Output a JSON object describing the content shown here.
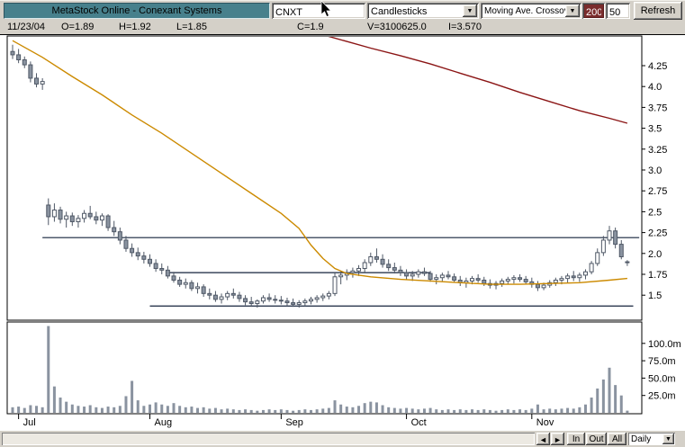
{
  "window": {
    "title": "MetaStock Online - Conexant Systems",
    "ticker": "CNXT",
    "chart_type": "Candlesticks",
    "indicator": "Moving Ave. Crossover",
    "param1": "200",
    "param2": "50",
    "refresh_label": "Refresh"
  },
  "info_bar": {
    "date": "11/23/04",
    "open": "O=1.89",
    "high": "H=1.92",
    "low": "L=1.85",
    "close": "C=1.9",
    "volume": "V=3100625.0",
    "indicator_value": "I=3.570"
  },
  "bottom_bar": {
    "zoom_in": "In",
    "zoom_out": "Out",
    "zoom_all": "All",
    "periodicity": "Daily"
  },
  "icons": {
    "down_arrow": "▼",
    "left_arrow": "◄",
    "right_arrow": "►"
  },
  "colors": {
    "ma_fast": "#cc8a00",
    "ma_slow": "#8b1515",
    "candle_stroke": "#4f5866",
    "candle_down_fill": "#8a93a0",
    "candle_up_fill": "#ffffff",
    "volume_bar": "#8a93a0",
    "trendline": "#14233c",
    "title_bg": "#47808c",
    "param_highlight_bg": "#7a2c2c"
  },
  "chart_data": {
    "type": "candlestick+volume",
    "symbol": "CNXT",
    "title": "Conexant Systems - Daily",
    "legend": "Moving Ave. Crossover (200, 50)",
    "price_axis": {
      "tick_values": [
        4.25,
        4.0,
        3.75,
        3.5,
        3.25,
        3.0,
        2.75,
        2.5,
        2.25,
        2.0,
        1.75,
        1.5
      ],
      "tick_labels": [
        "4.25",
        "4.0",
        "3.75",
        "3.5",
        "3.25",
        "3.0",
        "2.75",
        "2.5",
        "2.25",
        "2.0",
        "1.75",
        "1.5"
      ],
      "range_top": 4.6,
      "range_bottom": 1.25
    },
    "volume_axis": {
      "unit": "millions of shares",
      "tick_values": [
        100,
        75,
        50,
        25
      ],
      "tick_labels": [
        "100.0m",
        "75.0m",
        "50.0m",
        "25.0m"
      ]
    },
    "months": [
      {
        "label": "Jul",
        "day": 1
      },
      {
        "label": "Aug",
        "day": 23
      },
      {
        "label": "Sep",
        "day": 45
      },
      {
        "label": "Oct",
        "day": 66
      },
      {
        "label": "Nov",
        "day": 87
      }
    ],
    "candles_format": [
      "open",
      "high",
      "low",
      "close",
      "volume_millions"
    ],
    "candles": [
      [
        4.42,
        4.5,
        4.33,
        4.38,
        8
      ],
      [
        4.38,
        4.45,
        4.28,
        4.32,
        9
      ],
      [
        4.32,
        4.36,
        4.22,
        4.26,
        7
      ],
      [
        4.26,
        4.3,
        4.05,
        4.1,
        11
      ],
      [
        4.1,
        4.16,
        3.99,
        4.03,
        10
      ],
      [
        4.03,
        4.1,
        3.96,
        4.06,
        8
      ],
      [
        2.58,
        2.66,
        2.34,
        2.44,
        125
      ],
      [
        2.44,
        2.6,
        2.38,
        2.52,
        38
      ],
      [
        2.52,
        2.56,
        2.36,
        2.41,
        22
      ],
      [
        2.41,
        2.5,
        2.31,
        2.45,
        16
      ],
      [
        2.45,
        2.49,
        2.33,
        2.38,
        12
      ],
      [
        2.38,
        2.46,
        2.31,
        2.42,
        10
      ],
      [
        2.42,
        2.52,
        2.37,
        2.48,
        9
      ],
      [
        2.48,
        2.57,
        2.41,
        2.44,
        11
      ],
      [
        2.44,
        2.5,
        2.35,
        2.4,
        8
      ],
      [
        2.4,
        2.48,
        2.33,
        2.45,
        7
      ],
      [
        2.45,
        2.47,
        2.27,
        2.31,
        9
      ],
      [
        2.31,
        2.39,
        2.21,
        2.26,
        8
      ],
      [
        2.26,
        2.31,
        2.11,
        2.16,
        10
      ],
      [
        2.16,
        2.21,
        2.02,
        2.06,
        24
      ],
      [
        2.06,
        2.12,
        1.96,
        2.01,
        46
      ],
      [
        2.01,
        2.07,
        1.92,
        1.97,
        18
      ],
      [
        1.97,
        2.02,
        1.88,
        1.93,
        10
      ],
      [
        1.93,
        1.99,
        1.84,
        1.88,
        12
      ],
      [
        1.88,
        1.93,
        1.78,
        1.82,
        15
      ],
      [
        1.82,
        1.88,
        1.75,
        1.8,
        12
      ],
      [
        1.8,
        1.85,
        1.7,
        1.73,
        10
      ],
      [
        1.73,
        1.78,
        1.65,
        1.68,
        14
      ],
      [
        1.68,
        1.72,
        1.6,
        1.63,
        10
      ],
      [
        1.63,
        1.7,
        1.58,
        1.65,
        8
      ],
      [
        1.65,
        1.68,
        1.55,
        1.58,
        9
      ],
      [
        1.58,
        1.65,
        1.52,
        1.6,
        7
      ],
      [
        1.6,
        1.63,
        1.48,
        1.52,
        8
      ],
      [
        1.52,
        1.58,
        1.45,
        1.5,
        6
      ],
      [
        1.5,
        1.55,
        1.42,
        1.45,
        7
      ],
      [
        1.45,
        1.52,
        1.4,
        1.48,
        5
      ],
      [
        1.48,
        1.55,
        1.44,
        1.52,
        6
      ],
      [
        1.52,
        1.58,
        1.46,
        1.5,
        5
      ],
      [
        1.5,
        1.54,
        1.42,
        1.46,
        4
      ],
      [
        1.46,
        1.5,
        1.38,
        1.42,
        5
      ],
      [
        1.42,
        1.48,
        1.36,
        1.4,
        4
      ],
      [
        1.4,
        1.45,
        1.35,
        1.43,
        3
      ],
      [
        1.43,
        1.5,
        1.4,
        1.47,
        4
      ],
      [
        1.47,
        1.52,
        1.42,
        1.45,
        5
      ],
      [
        1.45,
        1.5,
        1.4,
        1.44,
        4
      ],
      [
        1.44,
        1.49,
        1.39,
        1.43,
        5
      ],
      [
        1.43,
        1.47,
        1.37,
        1.41,
        4
      ],
      [
        1.41,
        1.46,
        1.36,
        1.39,
        3
      ],
      [
        1.39,
        1.44,
        1.35,
        1.41,
        4
      ],
      [
        1.41,
        1.46,
        1.37,
        1.43,
        5
      ],
      [
        1.43,
        1.48,
        1.39,
        1.45,
        4
      ],
      [
        1.45,
        1.5,
        1.41,
        1.47,
        5
      ],
      [
        1.47,
        1.52,
        1.43,
        1.49,
        6
      ],
      [
        1.49,
        1.55,
        1.45,
        1.52,
        7
      ],
      [
        1.52,
        1.77,
        1.49,
        1.72,
        18
      ],
      [
        1.72,
        1.79,
        1.63,
        1.74,
        12
      ],
      [
        1.74,
        1.81,
        1.68,
        1.77,
        9
      ],
      [
        1.77,
        1.83,
        1.71,
        1.79,
        8
      ],
      [
        1.79,
        1.86,
        1.73,
        1.82,
        10
      ],
      [
        1.82,
        1.93,
        1.77,
        1.89,
        14
      ],
      [
        1.89,
        2.01,
        1.85,
        1.96,
        16
      ],
      [
        1.96,
        2.06,
        1.89,
        1.93,
        15
      ],
      [
        1.93,
        1.99,
        1.83,
        1.87,
        11
      ],
      [
        1.87,
        1.93,
        1.79,
        1.83,
        8
      ],
      [
        1.83,
        1.89,
        1.76,
        1.8,
        7
      ],
      [
        1.8,
        1.85,
        1.73,
        1.77,
        6
      ],
      [
        1.77,
        1.81,
        1.69,
        1.73,
        7
      ],
      [
        1.73,
        1.79,
        1.67,
        1.75,
        6
      ],
      [
        1.75,
        1.81,
        1.71,
        1.78,
        5
      ],
      [
        1.78,
        1.83,
        1.73,
        1.76,
        6
      ],
      [
        1.76,
        1.79,
        1.66,
        1.69,
        7
      ],
      [
        1.69,
        1.75,
        1.63,
        1.71,
        5
      ],
      [
        1.71,
        1.77,
        1.67,
        1.74,
        4
      ],
      [
        1.74,
        1.79,
        1.69,
        1.72,
        5
      ],
      [
        1.72,
        1.76,
        1.65,
        1.68,
        4
      ],
      [
        1.68,
        1.73,
        1.61,
        1.65,
        5
      ],
      [
        1.65,
        1.71,
        1.59,
        1.67,
        4
      ],
      [
        1.67,
        1.73,
        1.63,
        1.7,
        5
      ],
      [
        1.7,
        1.75,
        1.65,
        1.68,
        4
      ],
      [
        1.68,
        1.72,
        1.61,
        1.64,
        5
      ],
      [
        1.64,
        1.69,
        1.58,
        1.62,
        4
      ],
      [
        1.62,
        1.67,
        1.57,
        1.64,
        3
      ],
      [
        1.64,
        1.7,
        1.6,
        1.67,
        4
      ],
      [
        1.67,
        1.72,
        1.63,
        1.69,
        5
      ],
      [
        1.69,
        1.74,
        1.64,
        1.71,
        4
      ],
      [
        1.71,
        1.75,
        1.66,
        1.69,
        5
      ],
      [
        1.69,
        1.73,
        1.63,
        1.66,
        4
      ],
      [
        1.66,
        1.71,
        1.59,
        1.63,
        6
      ],
      [
        1.63,
        1.67,
        1.55,
        1.59,
        12
      ],
      [
        1.59,
        1.65,
        1.56,
        1.62,
        5
      ],
      [
        1.62,
        1.68,
        1.59,
        1.65,
        6
      ],
      [
        1.65,
        1.71,
        1.61,
        1.68,
        5
      ],
      [
        1.68,
        1.73,
        1.63,
        1.7,
        6
      ],
      [
        1.7,
        1.76,
        1.65,
        1.73,
        7
      ],
      [
        1.73,
        1.79,
        1.67,
        1.71,
        6
      ],
      [
        1.71,
        1.77,
        1.66,
        1.74,
        8
      ],
      [
        1.74,
        1.81,
        1.69,
        1.78,
        12
      ],
      [
        1.78,
        1.91,
        1.75,
        1.88,
        22
      ],
      [
        1.88,
        2.06,
        1.85,
        2.01,
        35
      ],
      [
        2.01,
        2.21,
        1.97,
        2.16,
        48
      ],
      [
        2.16,
        2.33,
        2.11,
        2.27,
        65
      ],
      [
        2.27,
        2.31,
        2.06,
        2.11,
        40
      ],
      [
        2.11,
        2.16,
        1.93,
        1.96,
        25
      ],
      [
        1.89,
        1.92,
        1.85,
        1.9,
        3.1
      ]
    ],
    "ma_fast": {
      "name": "50-period moving average",
      "points": [
        [
          0,
          4.55
        ],
        [
          5,
          4.35
        ],
        [
          10,
          4.12
        ],
        [
          15,
          3.9
        ],
        [
          20,
          3.66
        ],
        [
          25,
          3.44
        ],
        [
          30,
          3.2
        ],
        [
          35,
          2.96
        ],
        [
          40,
          2.72
        ],
        [
          45,
          2.48
        ],
        [
          48,
          2.3
        ],
        [
          50,
          2.1
        ],
        [
          52,
          1.94
        ],
        [
          54,
          1.82
        ],
        [
          56,
          1.76
        ],
        [
          60,
          1.72
        ],
        [
          65,
          1.69
        ],
        [
          70,
          1.67
        ],
        [
          75,
          1.65
        ],
        [
          80,
          1.63
        ],
        [
          85,
          1.63
        ],
        [
          90,
          1.64
        ],
        [
          95,
          1.65
        ],
        [
          100,
          1.68
        ],
        [
          103,
          1.7
        ]
      ]
    },
    "ma_slow": {
      "name": "200-period moving average",
      "points": [
        [
          52,
          4.62
        ],
        [
          56,
          4.54
        ],
        [
          60,
          4.46
        ],
        [
          65,
          4.37
        ],
        [
          70,
          4.27
        ],
        [
          75,
          4.16
        ],
        [
          80,
          4.05
        ],
        [
          85,
          3.93
        ],
        [
          90,
          3.82
        ],
        [
          95,
          3.71
        ],
        [
          100,
          3.62
        ],
        [
          103,
          3.56
        ]
      ]
    },
    "trendlines": [
      {
        "value": 2.19,
        "from_day": 5,
        "to_day": 105
      },
      {
        "value": 1.77,
        "from_day": 26,
        "to_day": 70
      },
      {
        "value": 1.37,
        "from_day": 23,
        "to_day": 104
      }
    ]
  }
}
